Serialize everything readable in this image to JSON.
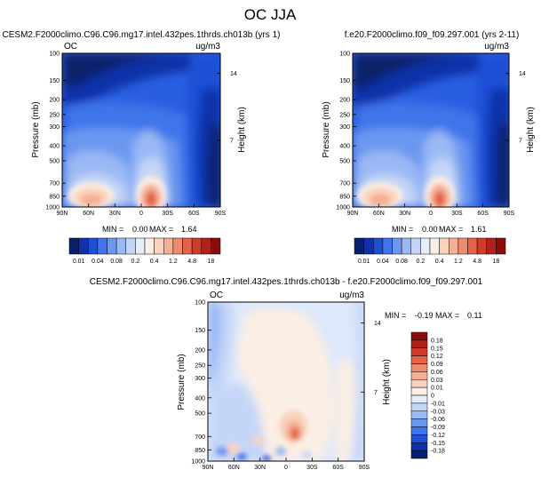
{
  "figure": {
    "title": "OC JJA"
  },
  "chart_data": [
    {
      "type": "heatmap",
      "title": "CESM2.F2000climo.C96.C96.mg17.intel.432pes.1thrds.ch013b (yrs 1)",
      "left_label": "OC",
      "units": "ug/m3",
      "xlabel": "",
      "ylabel": "Pressure (mb)",
      "right_label": "Height (km)",
      "x_ticks": [
        "90N",
        "60N",
        "30N",
        "0",
        "30S",
        "60S",
        "90S"
      ],
      "y_ticks": [
        "100",
        "150",
        "200",
        "250",
        "300",
        "400",
        "500",
        "700",
        "850",
        "1000"
      ],
      "y_ticks_right": [
        "14",
        "7"
      ],
      "stats": {
        "min_label": "MIN =",
        "min": "0.00",
        "max_label": "MAX =",
        "max": "1.64"
      },
      "ylim": [
        1000,
        100
      ],
      "xlim": [
        90,
        -90
      ]
    },
    {
      "type": "heatmap",
      "title": "f.e20.F2000climo.f09_f09.297.001 (yrs 2-11)",
      "left_label": "",
      "units": "ug/m3",
      "xlabel": "",
      "ylabel": "Pressure (mb)",
      "right_label": "Height (km)",
      "x_ticks": [
        "90N",
        "60N",
        "30N",
        "0",
        "30S",
        "60S",
        "90S"
      ],
      "y_ticks": [
        "100",
        "150",
        "200",
        "250",
        "300",
        "400",
        "500",
        "700",
        "850",
        "1000"
      ],
      "y_ticks_right": [
        "14",
        "7"
      ],
      "stats": {
        "min_label": "MIN =",
        "min": "0.00",
        "max_label": "MAX =",
        "max": "1.61"
      },
      "ylim": [
        1000,
        100
      ],
      "xlim": [
        90,
        -90
      ]
    },
    {
      "type": "heatmap",
      "title": "CESM2.F2000climo.C96.C96.mg17.intel.432pes.1thrds.ch013b - f.e20.F2000climo.f09_f09.297.001",
      "left_label": "OC",
      "units": "ug/m3",
      "xlabel": "",
      "ylabel": "Pressure (mb)",
      "right_label": "Height (km)",
      "x_ticks": [
        "90N",
        "60N",
        "30N",
        "0",
        "30S",
        "60S",
        "90S"
      ],
      "y_ticks": [
        "100",
        "150",
        "200",
        "250",
        "300",
        "400",
        "500",
        "700",
        "850",
        "1000"
      ],
      "y_ticks_right": [
        "14",
        "7"
      ],
      "stats": {
        "min_label": "MIN =",
        "min": "-0.19",
        "max_label": "MAX =",
        "max": "0.11"
      },
      "ylim": [
        1000,
        100
      ],
      "xlim": [
        90,
        -90
      ]
    }
  ],
  "colorbars": {
    "abs": {
      "labels": [
        "0.01",
        "0.04",
        "0.08",
        "0.2",
        "0.4",
        "1.2",
        "4.8",
        "18"
      ],
      "colors": [
        "#08206b",
        "#1131a8",
        "#1f4fd6",
        "#3f74ea",
        "#6a97f0",
        "#9ab8f4",
        "#c4d6f7",
        "#e6eefb",
        "#fbeee4",
        "#f9d3bd",
        "#f5b094",
        "#ee8a6e",
        "#e4624a",
        "#d03b2a",
        "#b1211a",
        "#8a0d0d"
      ]
    },
    "diff": {
      "labels": [
        "0.18",
        "0.15",
        "0.12",
        "0.09",
        "0.06",
        "0.03",
        "0.01",
        "0",
        "-0.01",
        "-0.03",
        "-0.06",
        "-0.09",
        "-0.12",
        "-0.15",
        "-0.18"
      ],
      "colors": [
        "#8a0d0d",
        "#b1211a",
        "#d03b2a",
        "#e4624a",
        "#ee8a6e",
        "#f5b094",
        "#f9d3bd",
        "#fbeee4",
        "#e6eefb",
        "#c4d6f7",
        "#9ab8f4",
        "#6a97f0",
        "#3f74ea",
        "#1f4fd6",
        "#1131a8",
        "#08206b"
      ]
    }
  }
}
